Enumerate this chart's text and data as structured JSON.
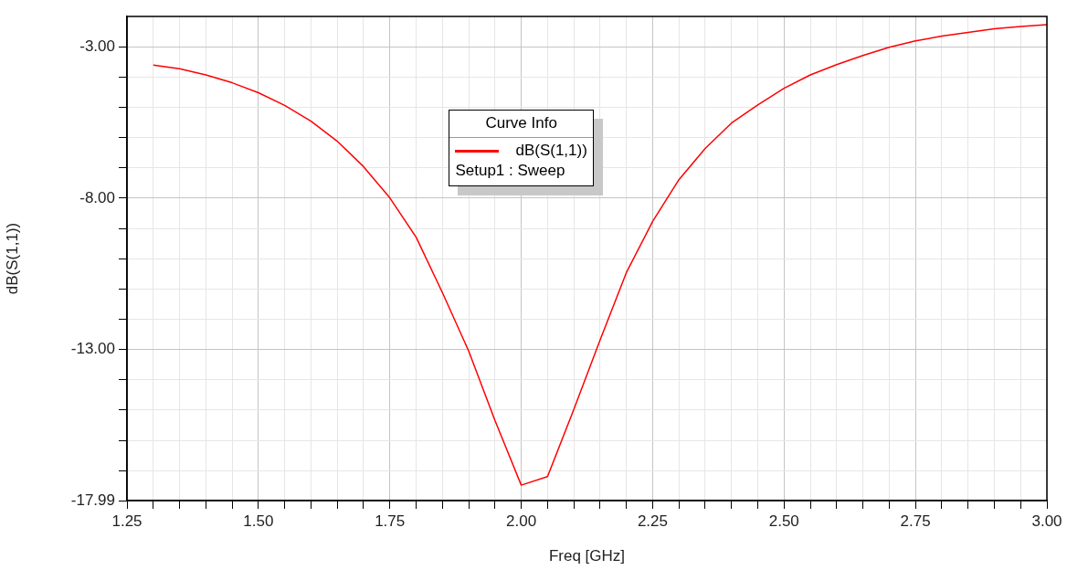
{
  "chart_data": {
    "type": "line",
    "xlabel": "Freq [GHz]",
    "ylabel": "dB(S(1,1))",
    "legend_title": "Curve Info",
    "annotations": [
      "Setup1 : Sweep"
    ],
    "x": [
      1.3,
      1.35,
      1.4,
      1.45,
      1.5,
      1.55,
      1.6,
      1.65,
      1.7,
      1.75,
      1.8,
      1.85,
      1.9,
      1.95,
      2.0,
      2.05,
      2.1,
      2.15,
      2.2,
      2.25,
      2.3,
      2.35,
      2.4,
      2.45,
      2.5,
      2.55,
      2.6,
      2.65,
      2.7,
      2.75,
      2.8,
      2.85,
      2.9,
      2.95,
      3.0
    ],
    "series": [
      {
        "name": "dB(S(1,1))",
        "color": "#ff0000",
        "values": [
          -3.61,
          -3.73,
          -3.93,
          -4.19,
          -4.52,
          -4.94,
          -5.46,
          -6.12,
          -6.96,
          -7.99,
          -9.29,
          -11.12,
          -13.05,
          -15.34,
          -17.48,
          -17.2,
          -14.98,
          -12.69,
          -10.46,
          -8.77,
          -7.39,
          -6.36,
          -5.52,
          -4.92,
          -4.37,
          -3.93,
          -3.59,
          -3.29,
          -3.02,
          -2.81,
          -2.65,
          -2.53,
          -2.41,
          -2.33,
          -2.27
        ]
      }
    ],
    "xlim": [
      1.25,
      3.0
    ],
    "ylim": [
      -17.99,
      -2.0
    ],
    "xticks": [
      {
        "value": 1.25,
        "label": "1.25"
      },
      {
        "value": 1.3,
        "label": null
      },
      {
        "value": 1.35,
        "label": null
      },
      {
        "value": 1.4,
        "label": null
      },
      {
        "value": 1.45,
        "label": null
      },
      {
        "value": 1.5,
        "label": "1.50"
      },
      {
        "value": 1.55,
        "label": null
      },
      {
        "value": 1.6,
        "label": null
      },
      {
        "value": 1.65,
        "label": null
      },
      {
        "value": 1.7,
        "label": null
      },
      {
        "value": 1.75,
        "label": "1.75"
      },
      {
        "value": 1.8,
        "label": null
      },
      {
        "value": 1.85,
        "label": null
      },
      {
        "value": 1.9,
        "label": null
      },
      {
        "value": 1.95,
        "label": null
      },
      {
        "value": 2.0,
        "label": "2.00"
      },
      {
        "value": 2.05,
        "label": null
      },
      {
        "value": 2.1,
        "label": null
      },
      {
        "value": 2.15,
        "label": null
      },
      {
        "value": 2.2,
        "label": null
      },
      {
        "value": 2.25,
        "label": "2.25"
      },
      {
        "value": 2.3,
        "label": null
      },
      {
        "value": 2.35,
        "label": null
      },
      {
        "value": 2.4,
        "label": null
      },
      {
        "value": 2.45,
        "label": null
      },
      {
        "value": 2.5,
        "label": "2.50"
      },
      {
        "value": 2.55,
        "label": null
      },
      {
        "value": 2.6,
        "label": null
      },
      {
        "value": 2.65,
        "label": null
      },
      {
        "value": 2.7,
        "label": null
      },
      {
        "value": 2.75,
        "label": "2.75"
      },
      {
        "value": 2.8,
        "label": null
      },
      {
        "value": 2.85,
        "label": null
      },
      {
        "value": 2.9,
        "label": null
      },
      {
        "value": 2.95,
        "label": null
      },
      {
        "value": 3.0,
        "label": "3.00"
      }
    ],
    "yticks": [
      -17.99,
      {
        "value": -17,
        "label": null
      },
      {
        "value": -16,
        "label": null
      },
      {
        "value": -15,
        "label": null
      },
      {
        "value": -14,
        "label": null
      },
      {
        "value": -13,
        "label": "-13.00"
      },
      {
        "value": -12,
        "label": null
      },
      {
        "value": -11,
        "label": null
      },
      {
        "value": -10,
        "label": null
      },
      {
        "value": -9,
        "label": null
      },
      {
        "value": -8,
        "label": "-8.00"
      },
      {
        "value": -7,
        "label": null
      },
      {
        "value": -6,
        "label": null
      },
      {
        "value": -5,
        "label": null
      },
      {
        "value": -4,
        "label": null
      },
      {
        "value": -3,
        "label": "-3.00"
      }
    ],
    "grid": true,
    "legend": "top",
    "marker": "none",
    "line_style": "solid"
  }
}
